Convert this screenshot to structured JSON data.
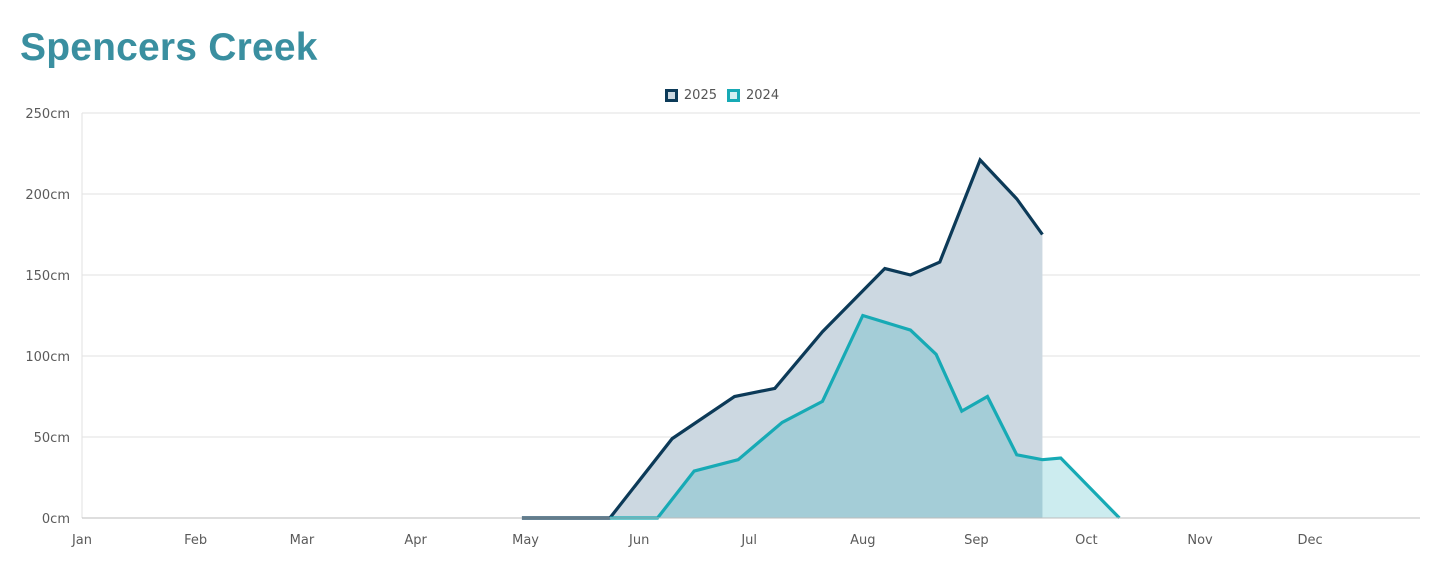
{
  "page": {
    "title": "Spencers Creek"
  },
  "colors": {
    "title": "#3a8fa0",
    "series_2025_line": "#0c3a58",
    "series_2025_fill": "#ccd8e1",
    "series_2024_line": "#17aab5",
    "series_2024_fill": "rgba(23,170,181,0.22)",
    "grid": "#e2e2e2",
    "axis": "#bdbdbd"
  },
  "legend": [
    {
      "label": "2025",
      "color": "#0c3a58"
    },
    {
      "label": "2024",
      "color": "#17aab5"
    }
  ],
  "chart_data": {
    "type": "area",
    "title": "Spencers Creek",
    "xlabel": "",
    "ylabel": "",
    "x_unit": "day of year",
    "xlim": [
      1,
      366
    ],
    "ylim": [
      0,
      250
    ],
    "y_unit_suffix": "cm",
    "yticks": [
      0,
      50,
      100,
      150,
      200,
      250
    ],
    "ytick_labels": [
      "0cm",
      "50cm",
      "100cm",
      "150cm",
      "200cm",
      "250cm"
    ],
    "xticks": [
      {
        "day": 1,
        "label": "Jan"
      },
      {
        "day": 32,
        "label": "Feb"
      },
      {
        "day": 61,
        "label": "Mar"
      },
      {
        "day": 92,
        "label": "Apr"
      },
      {
        "day": 122,
        "label": "May"
      },
      {
        "day": 153,
        "label": "Jun"
      },
      {
        "day": 183,
        "label": "Jul"
      },
      {
        "day": 214,
        "label": "Aug"
      },
      {
        "day": 245,
        "label": "Sep"
      },
      {
        "day": 275,
        "label": "Oct"
      },
      {
        "day": 306,
        "label": "Nov"
      },
      {
        "day": 336,
        "label": "Dec"
      }
    ],
    "grid": true,
    "legend_position": "top-center",
    "series": [
      {
        "name": "2025",
        "points": [
          [
            121,
            0
          ],
          [
            145,
            0
          ],
          [
            162,
            49
          ],
          [
            179,
            75
          ],
          [
            190,
            80
          ],
          [
            203,
            115
          ],
          [
            220,
            154
          ],
          [
            227,
            150
          ],
          [
            235,
            158
          ],
          [
            246,
            221
          ],
          [
            256,
            197
          ],
          [
            263,
            175
          ]
        ]
      },
      {
        "name": "2024",
        "points": [
          [
            145,
            0
          ],
          [
            158,
            0
          ],
          [
            168,
            29
          ],
          [
            180,
            36
          ],
          [
            192,
            59
          ],
          [
            203,
            72
          ],
          [
            214,
            125
          ],
          [
            227,
            116
          ],
          [
            234,
            101
          ],
          [
            241,
            66
          ],
          [
            248,
            75
          ],
          [
            256,
            39
          ],
          [
            263,
            36
          ],
          [
            268,
            37
          ],
          [
            284,
            0
          ]
        ]
      }
    ]
  }
}
